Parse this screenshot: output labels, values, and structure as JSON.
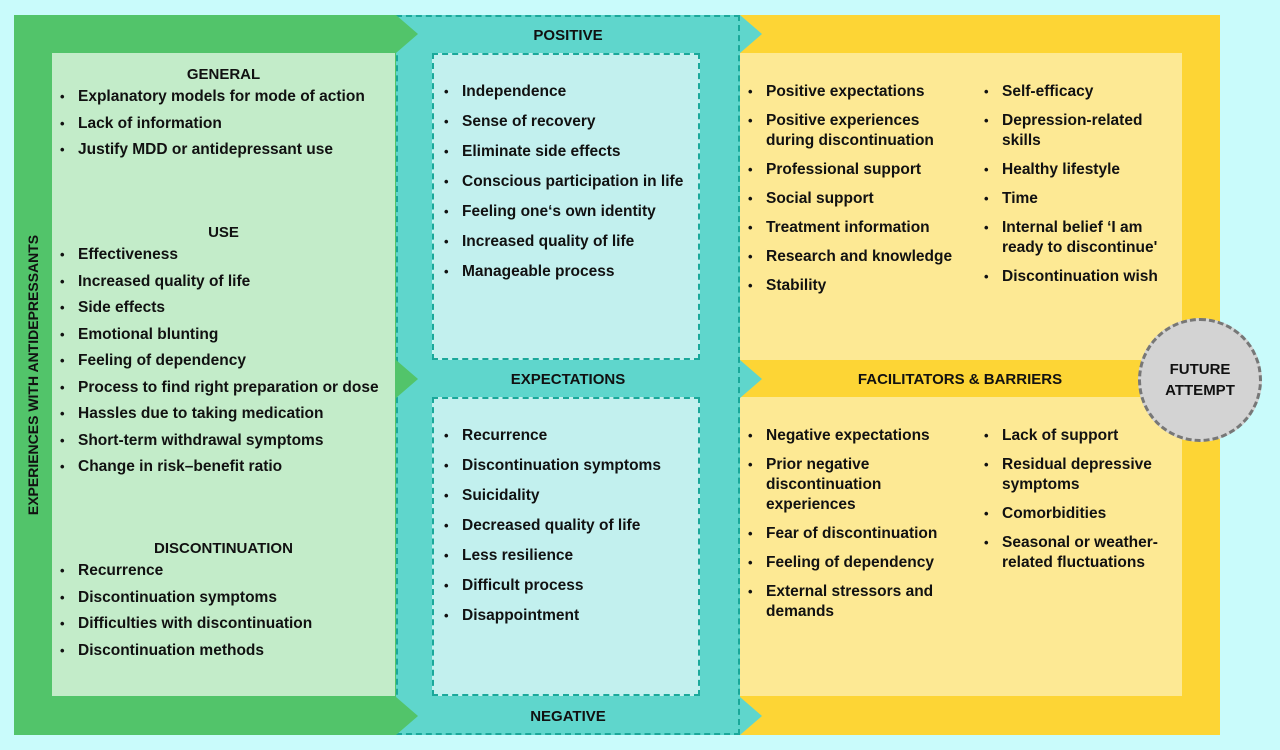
{
  "colors": {
    "green": "#52c46a",
    "green_light": "#c3ecc9",
    "teal": "#5fd6cc",
    "teal_light": "#c2f0ee",
    "yellow": "#fdd535",
    "yellow_light": "#fde994",
    "circle": "#d3d3d3"
  },
  "left": {
    "vertical_label": "EXPERIENCES WITH ANTIDEPRESSANTS",
    "sections": [
      {
        "title": "GENERAL",
        "items": [
          "Explanatory models for mode of action",
          "Lack of information",
          "Justify MDD or antidepressant use"
        ]
      },
      {
        "title": "USE",
        "items": [
          "Effectiveness",
          "Increased quality of life",
          "Side effects",
          "Emotional blunting",
          "Feeling of dependency",
          "Process to find right preparation or dose",
          "Hassles due to taking medication",
          "Short-term withdrawal symptoms",
          "Change in risk–benefit ratio"
        ]
      },
      {
        "title": "DISCONTINUATION",
        "items": [
          "Recurrence",
          "Discontinuation symptoms",
          "Difficulties with discontinuation",
          "Discontinuation methods"
        ]
      }
    ]
  },
  "middle": {
    "top_label": "POSITIVE",
    "center_label": "EXPECTATIONS",
    "bottom_label": "NEGATIVE",
    "positive": [
      "Independence",
      "Sense of recovery",
      "Eliminate side effects",
      "Conscious participation in life",
      "Feeling one‘s own identity",
      "Increased quality of life",
      "Manageable process"
    ],
    "negative": [
      "Recurrence",
      "Discontinuation symptoms",
      "Suicidality",
      "Decreased quality of life",
      "Less resilience",
      "Difficult process",
      "Disappointment"
    ]
  },
  "right": {
    "center_label": "FACILITATORS & BARRIERS",
    "facilitators_col1": [
      "Positive expectations",
      "Positive experiences during discontinuation",
      "Professional support",
      "Social support",
      "Treatment information",
      "Research and knowledge",
      "Stability"
    ],
    "facilitators_col2": [
      "Self-efficacy",
      "Depression-related skills",
      "Healthy lifestyle",
      "Time",
      "Internal belief ‘I am ready to discontinue'",
      "Discontinuation wish"
    ],
    "barriers_col1": [
      "Negative expectations",
      "Prior negative discontinuation experiences",
      "Fear of discontinuation",
      "Feeling of dependency",
      "External stressors and demands"
    ],
    "barriers_col2": [
      "Lack of support",
      "Residual depressive symptoms",
      "Comorbidities",
      "Seasonal or weather-related fluctuations"
    ]
  },
  "circle": {
    "line1": "FUTURE",
    "line2": "ATTEMPT"
  }
}
